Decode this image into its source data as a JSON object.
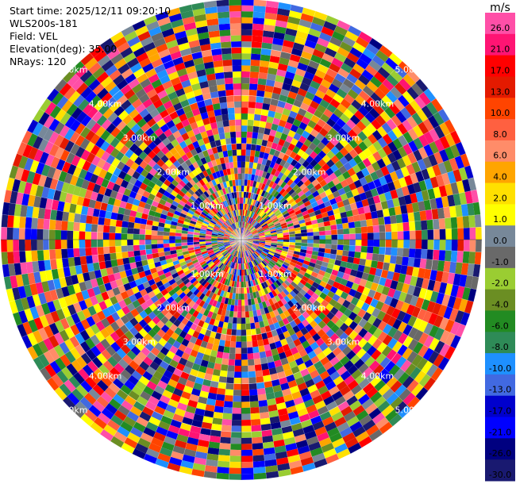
{
  "header": {
    "lines": [
      "Start time: 2025/12/11 09:20:10",
      "WLS200s-181",
      "Field: VEL",
      "Elevation(deg): 35.00",
      "NRays: 120"
    ]
  },
  "chart_data": {
    "type": "heatmap",
    "subtype": "polar-ppi",
    "field": "VEL",
    "n_rays": 120,
    "range_ring_labels": [
      "1.00km",
      "2.00km",
      "3.00km",
      "4.00km",
      "5.00km"
    ],
    "range_ring_label_bearings_deg": [
      45,
      135,
      225,
      315
    ],
    "grid": true,
    "colorbar": {
      "unit": "m/s",
      "placement": "right",
      "levels": [
        26.0,
        21.0,
        17.0,
        13.0,
        10.0,
        8.0,
        6.0,
        4.0,
        2.0,
        1.0,
        0.0,
        -1.0,
        -2.0,
        -4.0,
        -6.0,
        -8.0,
        -10.0,
        -13.0,
        -17.0,
        -21.0,
        -26.0,
        -30.0
      ],
      "tick_labels": [
        "26.0",
        "21.0",
        "17.0",
        "13.0",
        "10.0",
        "8.0",
        "6.0",
        "4.0",
        "2.0",
        "1.0",
        "0.0",
        "-1.0",
        "-2.0",
        "-4.0",
        "-6.0",
        "-8.0",
        "-10.0",
        "-13.0",
        "-17.0",
        "-21.0",
        "-26.0",
        "-30.0"
      ],
      "colors": [
        "#ff4fa7",
        "#ff1473",
        "#ff0000",
        "#e41a00",
        "#ff4400",
        "#ff6040",
        "#ff8c69",
        "#ffa500",
        "#ffe000",
        "#ffff00",
        "#778899",
        "#696969",
        "#9acd32",
        "#6b8e23",
        "#228b22",
        "#2e8b57",
        "#1e90ff",
        "#4169e1",
        "#0000cd",
        "#0000ff",
        "#000080",
        "#191970"
      ]
    }
  }
}
